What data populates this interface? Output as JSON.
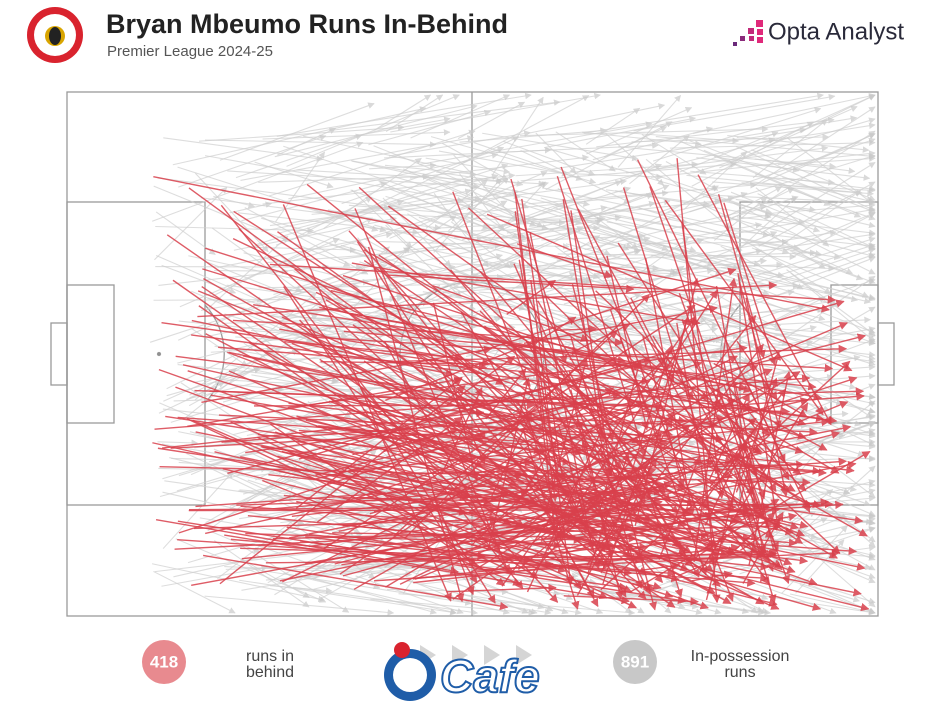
{
  "header": {
    "title": "Bryan Mbeumo Runs In-Behind",
    "subtitle": "Premier League 2024-25",
    "brand": "Opta Analyst"
  },
  "legend": [
    {
      "value": 418,
      "label": "runs in behind"
    },
    {
      "value": 891,
      "label": "In-possession runs"
    }
  ],
  "watermark": "Cafe"
}
